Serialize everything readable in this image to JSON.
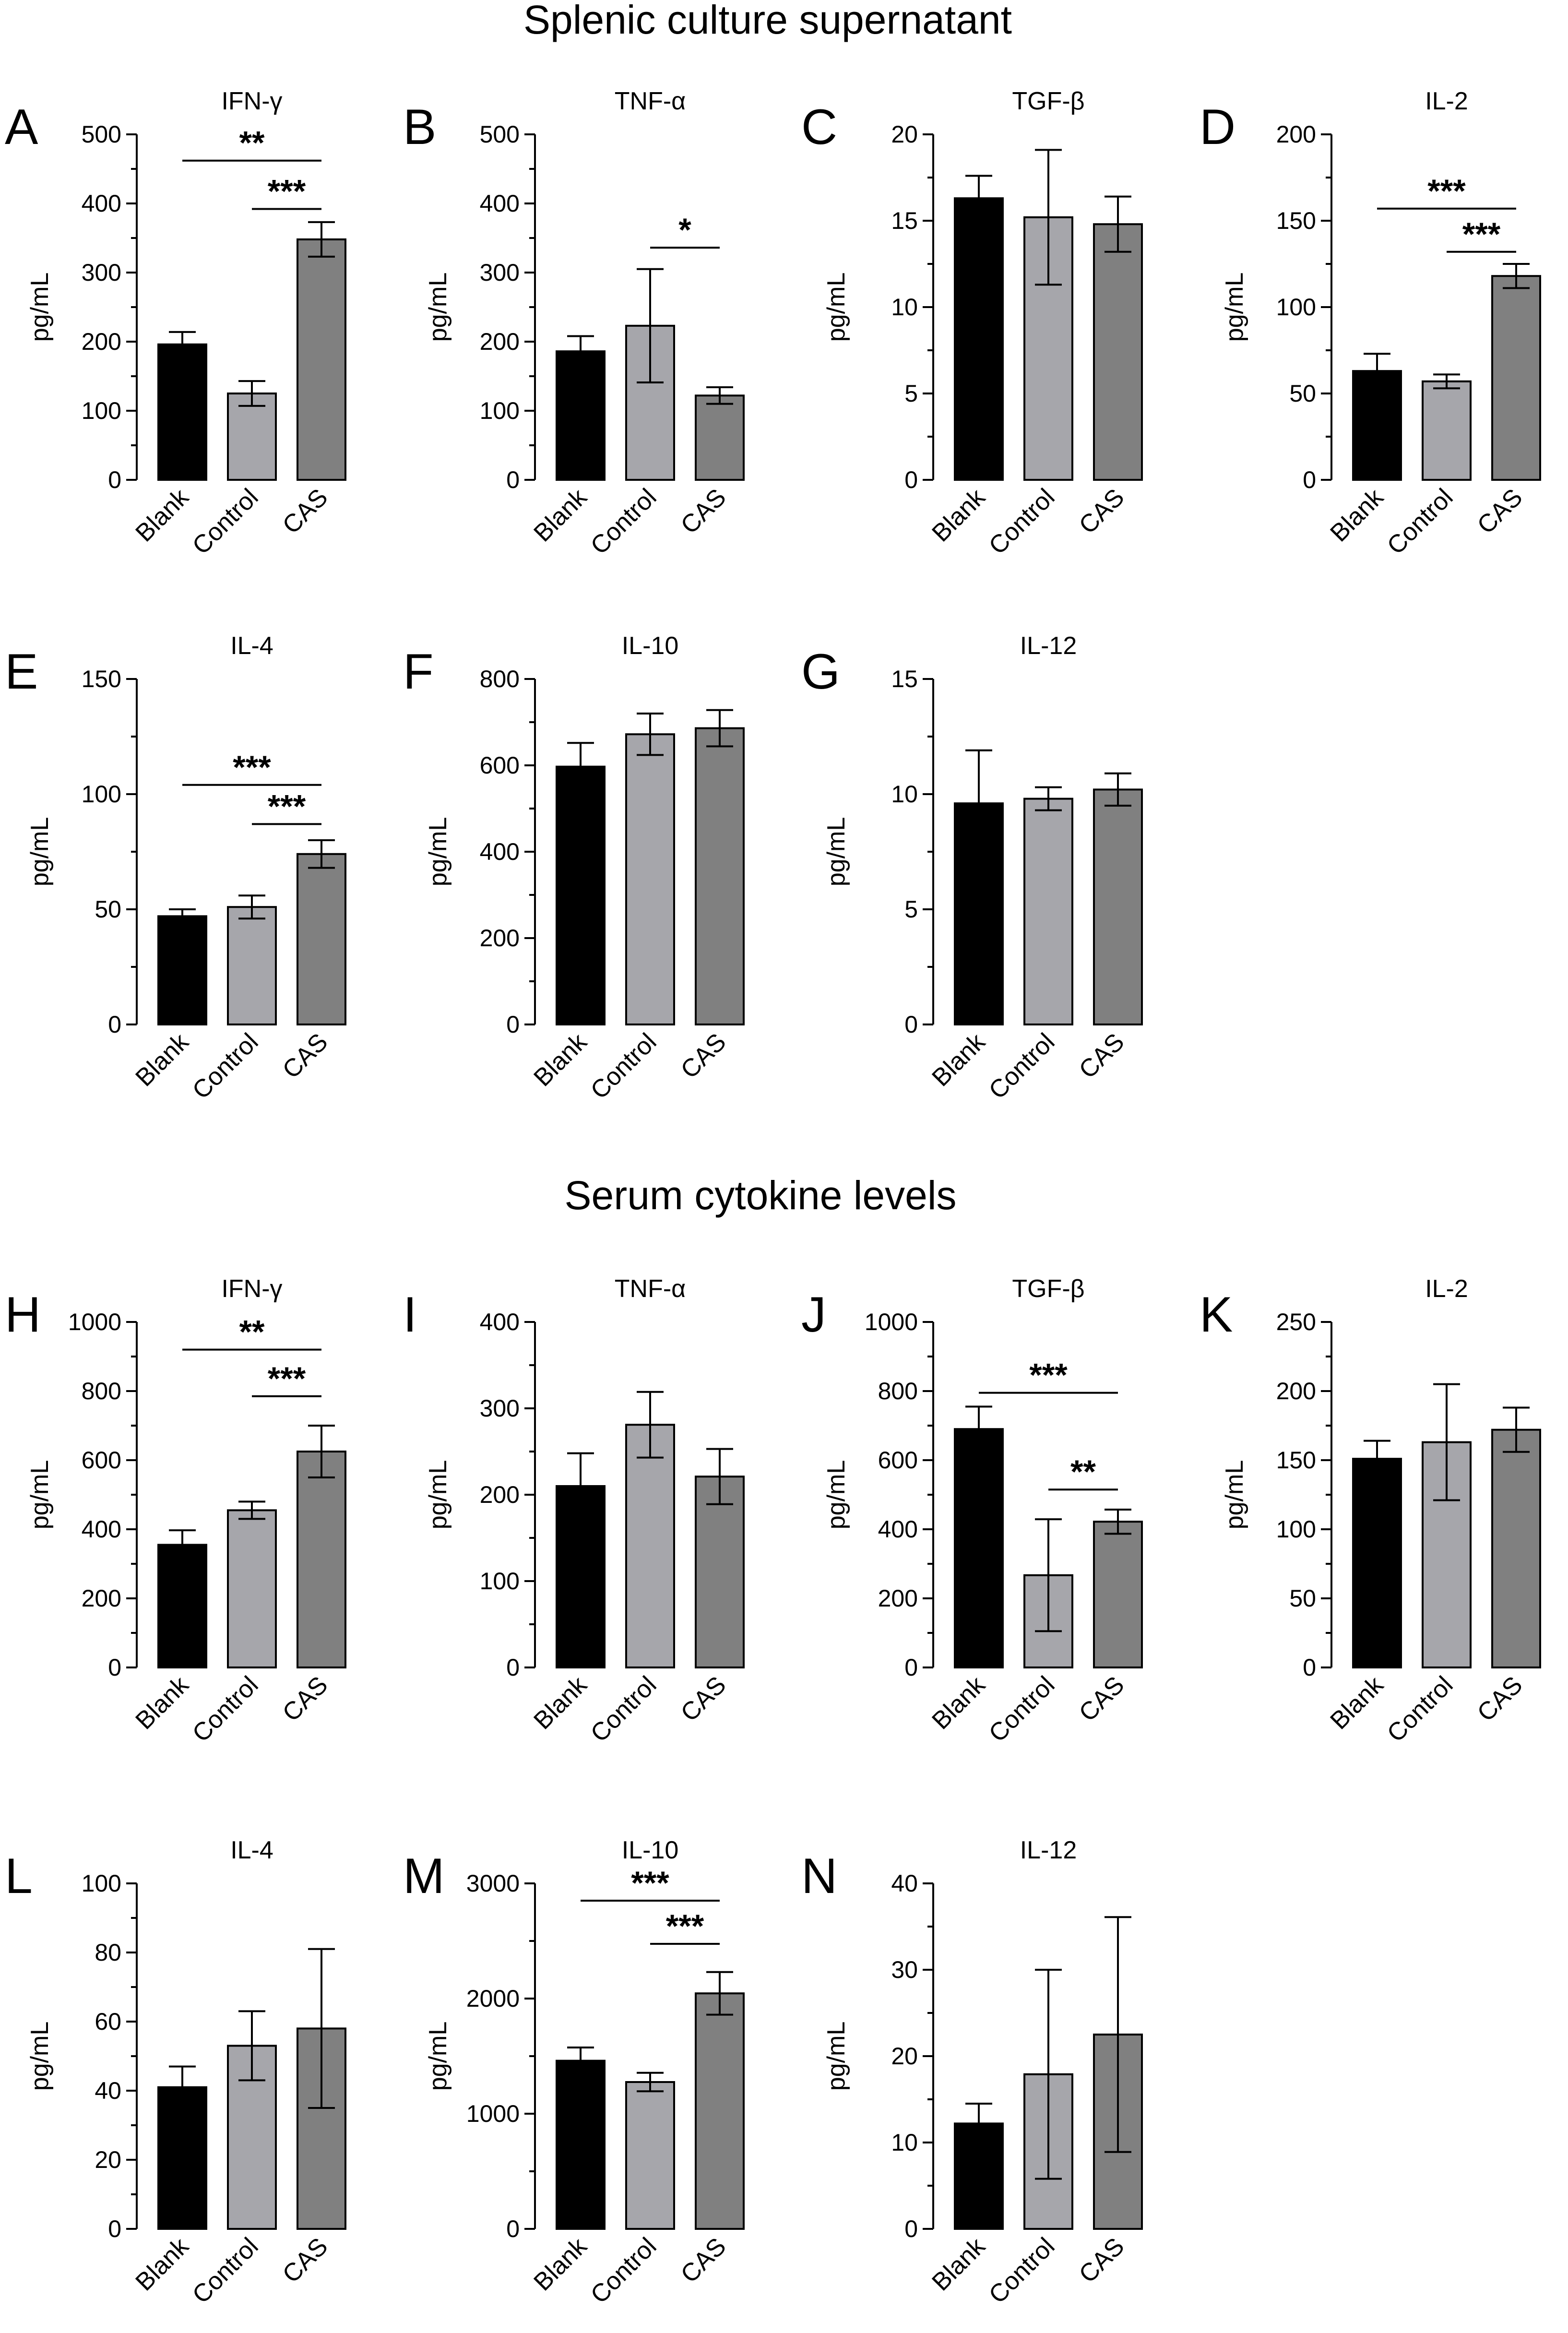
{
  "sections": [
    {
      "title": "Splenic culture supernatant"
    },
    {
      "title": "Serum cytokine levels"
    }
  ],
  "colors": {
    "Blank": "#000000",
    "Control": "#a6a6ab",
    "CAS": "#808080"
  },
  "chart_data": [
    {
      "type": "bar",
      "letter": "A",
      "title": "IFN-γ",
      "ylabel": "pg/mL",
      "categories": [
        "Blank",
        "Control",
        "CAS"
      ],
      "values": [
        196,
        125,
        348
      ],
      "errors": [
        18,
        18,
        25
      ],
      "ylim": [
        0,
        500
      ],
      "yticks": [
        0,
        100,
        200,
        300,
        400,
        500
      ],
      "minor_ticks": 1,
      "annotations": [
        {
          "from": 0,
          "to": 2,
          "y": 462,
          "label": "**"
        },
        {
          "from": 1,
          "to": 2,
          "y": 392,
          "label": "***"
        }
      ]
    },
    {
      "type": "bar",
      "letter": "B",
      "title": "TNF-α",
      "ylabel": "pg/mL",
      "categories": [
        "Blank",
        "Control",
        "CAS"
      ],
      "values": [
        186,
        223,
        122
      ],
      "errors": [
        22,
        82,
        12
      ],
      "ylim": [
        0,
        500
      ],
      "yticks": [
        0,
        100,
        200,
        300,
        400,
        500
      ],
      "minor_ticks": 1,
      "annotations": [
        {
          "from": 1,
          "to": 2,
          "y": 336,
          "label": "*"
        }
      ]
    },
    {
      "type": "bar",
      "letter": "C",
      "title": "TGF-β",
      "ylabel": "pg/mL",
      "categories": [
        "Blank",
        "Control",
        "CAS"
      ],
      "values": [
        16.3,
        15.2,
        14.8
      ],
      "errors": [
        1.3,
        3.9,
        1.6
      ],
      "ylim": [
        0,
        20
      ],
      "yticks": [
        0,
        5,
        10,
        15,
        20
      ],
      "minor_ticks": 1,
      "annotations": []
    },
    {
      "type": "bar",
      "letter": "D",
      "title": "IL-2",
      "ylabel": "pg/mL",
      "categories": [
        "Blank",
        "Control",
        "CAS"
      ],
      "values": [
        63,
        57,
        118
      ],
      "errors": [
        10,
        4,
        7
      ],
      "ylim": [
        0,
        200
      ],
      "yticks": [
        0,
        50,
        100,
        150,
        200
      ],
      "minor_ticks": 1,
      "annotations": [
        {
          "from": 0,
          "to": 2,
          "y": 157,
          "label": "***"
        },
        {
          "from": 1,
          "to": 2,
          "y": 132,
          "label": "***"
        }
      ]
    },
    {
      "type": "bar",
      "letter": "E",
      "title": "IL-4",
      "ylabel": "pg/mL",
      "categories": [
        "Blank",
        "Control",
        "CAS"
      ],
      "values": [
        47,
        51,
        74
      ],
      "errors": [
        3,
        5,
        6
      ],
      "ylim": [
        0,
        150
      ],
      "yticks": [
        0,
        50,
        100,
        150
      ],
      "minor_ticks": 1,
      "annotations": [
        {
          "from": 0,
          "to": 2,
          "y": 104,
          "label": "***"
        },
        {
          "from": 1,
          "to": 2,
          "y": 87,
          "label": "***"
        }
      ]
    },
    {
      "type": "bar",
      "letter": "F",
      "title": "IL-10",
      "ylabel": "pg/mL",
      "categories": [
        "Blank",
        "Control",
        "CAS"
      ],
      "values": [
        597,
        672,
        686
      ],
      "errors": [
        55,
        48,
        42
      ],
      "ylim": [
        0,
        800
      ],
      "yticks": [
        0,
        200,
        400,
        600,
        800
      ],
      "minor_ticks": 1,
      "annotations": []
    },
    {
      "type": "bar",
      "letter": "G",
      "title": "IL-12",
      "ylabel": "pg/mL",
      "categories": [
        "Blank",
        "Control",
        "CAS"
      ],
      "values": [
        9.6,
        9.8,
        10.2
      ],
      "errors": [
        2.3,
        0.5,
        0.7
      ],
      "ylim": [
        0,
        15
      ],
      "yticks": [
        0,
        5,
        10,
        15
      ],
      "minor_ticks": 1,
      "annotations": []
    },
    {
      "type": "bar",
      "letter": "H",
      "title": "IFN-γ",
      "ylabel": "pg/mL",
      "categories": [
        "Blank",
        "Control",
        "CAS"
      ],
      "values": [
        355,
        455,
        625
      ],
      "errors": [
        42,
        25,
        75
      ],
      "ylim": [
        0,
        1000
      ],
      "yticks": [
        0,
        200,
        400,
        600,
        800,
        1000
      ],
      "minor_ticks": 1,
      "annotations": [
        {
          "from": 0,
          "to": 2,
          "y": 920,
          "label": "**"
        },
        {
          "from": 1,
          "to": 2,
          "y": 785,
          "label": "***"
        }
      ]
    },
    {
      "type": "bar",
      "letter": "I",
      "title": "TNF-α",
      "ylabel": "pg/mL",
      "categories": [
        "Blank",
        "Control",
        "CAS"
      ],
      "values": [
        210,
        281,
        221
      ],
      "errors": [
        38,
        38,
        32
      ],
      "ylim": [
        0,
        400
      ],
      "yticks": [
        0,
        100,
        200,
        300,
        400
      ],
      "minor_ticks": 1,
      "annotations": []
    },
    {
      "type": "bar",
      "letter": "J",
      "title": "TGF-β",
      "ylabel": "pg/mL",
      "categories": [
        "Blank",
        "Control",
        "CAS"
      ],
      "values": [
        690,
        267,
        422
      ],
      "errors": [
        65,
        162,
        35
      ],
      "ylim": [
        0,
        1000
      ],
      "yticks": [
        0,
        200,
        400,
        600,
        800,
        1000
      ],
      "minor_ticks": 1,
      "annotations": [
        {
          "from": 0,
          "to": 2,
          "y": 795,
          "label": "***"
        },
        {
          "from": 1,
          "to": 2,
          "y": 515,
          "label": "**"
        }
      ]
    },
    {
      "type": "bar",
      "letter": "K",
      "title": "IL-2",
      "ylabel": "pg/mL",
      "categories": [
        "Blank",
        "Control",
        "CAS"
      ],
      "values": [
        151,
        163,
        172
      ],
      "errors": [
        13,
        42,
        16
      ],
      "ylim": [
        0,
        250
      ],
      "yticks": [
        0,
        50,
        100,
        150,
        200,
        250
      ],
      "minor_ticks": 1,
      "annotations": []
    },
    {
      "type": "bar",
      "letter": "L",
      "title": "IL-4",
      "ylabel": "pg/mL",
      "categories": [
        "Blank",
        "Control",
        "CAS"
      ],
      "values": [
        41,
        53,
        58
      ],
      "errors": [
        6,
        10,
        23
      ],
      "ylim": [
        0,
        100
      ],
      "yticks": [
        0,
        20,
        40,
        60,
        80,
        100
      ],
      "minor_ticks": 1,
      "annotations": []
    },
    {
      "type": "bar",
      "letter": "M",
      "title": "IL-10",
      "ylabel": "pg/mL",
      "categories": [
        "Blank",
        "Control",
        "CAS"
      ],
      "values": [
        1460,
        1275,
        2045
      ],
      "errors": [
        115,
        80,
        185
      ],
      "ylim": [
        0,
        3000
      ],
      "yticks": [
        0,
        1000,
        2000,
        3000
      ],
      "minor_ticks": 1,
      "annotations": [
        {
          "from": 0,
          "to": 2,
          "y": 2850,
          "label": "***"
        },
        {
          "from": 1,
          "to": 2,
          "y": 2475,
          "label": "***"
        }
      ]
    },
    {
      "type": "bar",
      "letter": "N",
      "title": "IL-12",
      "ylabel": "pg/mL",
      "categories": [
        "Blank",
        "Control",
        "CAS"
      ],
      "values": [
        12.2,
        17.9,
        22.5
      ],
      "errors": [
        2.3,
        12.1,
        13.6
      ],
      "ylim": [
        0,
        40
      ],
      "yticks": [
        0,
        10,
        20,
        30,
        40
      ],
      "minor_ticks": 1,
      "annotations": []
    }
  ]
}
